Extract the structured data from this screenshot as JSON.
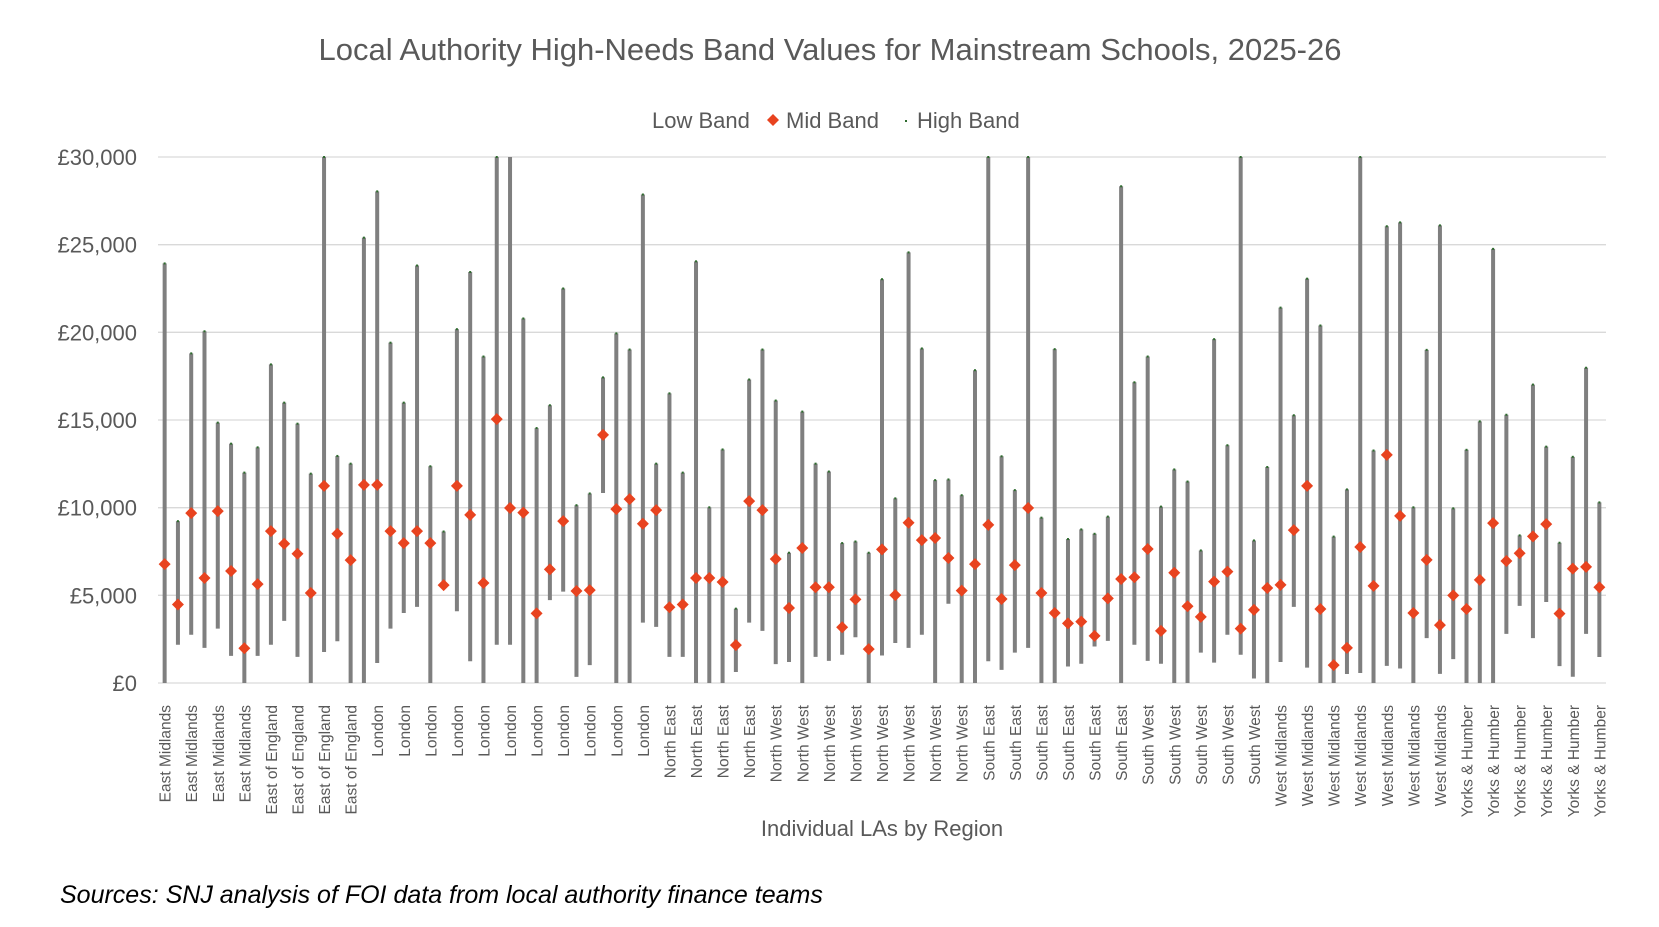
{
  "chart_data": {
    "type": "high-low-mid (stock-style range) chart",
    "title": "Local Authority High-Needs Band Values for Mainstream Schools, 2025-26",
    "xlabel": "Individual LAs by Region",
    "ylabel": "",
    "ylim": [
      0,
      30000
    ],
    "y_ticks": [
      0,
      5000,
      10000,
      15000,
      20000,
      25000,
      30000
    ],
    "y_tick_labels": [
      "£0",
      "£5,000",
      "£10,000",
      "£15,000",
      "£20,000",
      "£25,000",
      "£30,000"
    ],
    "grid": "horizontal",
    "legend_position": "top-center",
    "legend": [
      {
        "name": "Low Band",
        "marker": "none"
      },
      {
        "name": "Mid Band",
        "marker": "diamond"
      },
      {
        "name": "High Band",
        "marker": "dot"
      }
    ],
    "colors": {
      "range_line": "#7f7f7f",
      "mid_marker": "#e8431f",
      "high_marker": "#2e6b2e",
      "grid": "#d9d9d9",
      "text": "#595959"
    },
    "label_interval": 2,
    "x_tick_labels": [
      "East Midlands",
      "East Midlands",
      "East Midlands",
      "East Midlands",
      "East of England",
      "East of England",
      "East of England",
      "East of England",
      "London",
      "London",
      "London",
      "London",
      "London",
      "London",
      "London",
      "London",
      "London",
      "London",
      "London",
      "North East",
      "North East",
      "North East",
      "North East",
      "North West",
      "North West",
      "North West",
      "North West",
      "North West",
      "North West",
      "North West",
      "North West",
      "South East",
      "South East",
      "South East",
      "South East",
      "South East",
      "South East",
      "South West",
      "South West",
      "South West",
      "South West",
      "South West",
      "West Midlands",
      "West Midlands",
      "West Midlands",
      "West Midlands",
      "West Midlands",
      "West Midlands",
      "West Midlands",
      "Yorks & Humber",
      "Yorks & Humber",
      "Yorks & Humber",
      "Yorks & Humber",
      "Yorks & Humber",
      "Yorks & Humber"
    ],
    "note": "High values shown as 30000 with clipped=true extend beyond the axis maximum",
    "series": [
      {
        "name": "Low Band",
        "values": [
          0,
          2180,
          2750,
          2000,
          3100,
          1550,
          0,
          1550,
          2180,
          3540,
          1490,
          0,
          1770,
          2380,
          0,
          0,
          1140,
          3100,
          3990,
          4340,
          0,
          5580,
          4090,
          1240,
          0,
          2180,
          2180,
          0,
          0,
          4730,
          5210,
          350,
          1020,
          10840,
          0,
          0,
          3440,
          3200,
          1490,
          1490,
          0,
          0,
          0,
          630,
          3440,
          2970,
          1080,
          1200,
          0,
          1490,
          1260,
          1610,
          2610,
          0,
          1570,
          2280,
          2000,
          2750,
          0,
          4520,
          0,
          0,
          1240,
          750,
          1730,
          2000,
          0,
          0,
          940,
          1100,
          2080,
          2400,
          0,
          2180,
          1260,
          1100,
          0,
          0,
          1730,
          1160,
          2750,
          1610,
          260,
          0,
          1200,
          4340,
          880,
          0,
          0,
          510,
          570,
          0,
          980,
          830,
          0,
          2560,
          520,
          1360,
          0,
          0,
          0,
          2800,
          4400,
          2560,
          4620,
          960,
          360,
          2800,
          1480
        ]
      },
      {
        "name": "Mid Band",
        "values": [
          6780,
          4480,
          9690,
          5990,
          9800,
          6390,
          1980,
          5640,
          8660,
          7940,
          7370,
          5130,
          11240,
          8510,
          7010,
          11300,
          11300,
          8660,
          7980,
          8660,
          7980,
          5580,
          11240,
          9590,
          5700,
          15050,
          9980,
          9720,
          3970,
          6480,
          9230,
          5250,
          5300,
          14150,
          9920,
          10490,
          9080,
          9860,
          4320,
          4480,
          5990,
          5990,
          5760,
          2160,
          10370,
          9860,
          7070,
          4280,
          7700,
          5460,
          5460,
          3180,
          4770,
          1930,
          7620,
          5010,
          9140,
          8150,
          8270,
          7130,
          5270,
          6780,
          9020,
          4790,
          6720,
          9980,
          5130,
          3990,
          3400,
          3500,
          2690,
          4830,
          5930,
          6030,
          7640,
          2970,
          6290,
          4380,
          3770,
          5780,
          6350,
          3100,
          4170,
          5420,
          5600,
          8720,
          11240,
          4220,
          1020,
          2000,
          7760,
          5540,
          13010,
          9530,
          3990,
          7020,
          3300,
          5000,
          4220,
          5880,
          9120,
          6960,
          7400,
          8360,
          9060,
          3960,
          6520,
          6620,
          5460
        ]
      },
      {
        "name": "High Band",
        "values": [
          23930,
          9230,
          18800,
          20060,
          14850,
          13650,
          12000,
          13440,
          18170,
          15990,
          14790,
          11940,
          30000,
          12950,
          12510,
          25400,
          28040,
          19410,
          15990,
          23810,
          12360,
          8640,
          20180,
          23440,
          18620,
          30000,
          30060,
          20790,
          14540,
          15840,
          22500,
          10140,
          10810,
          17430,
          19940,
          19020,
          27860,
          12510,
          16520,
          12000,
          24050,
          10020,
          13320,
          4240,
          17310,
          19020,
          16110,
          7430,
          15480,
          12510,
          12060,
          7980,
          8070,
          7430,
          23030,
          10530,
          24560,
          19080,
          11570,
          11610,
          10710,
          17840,
          30000,
          12930,
          11000,
          30000,
          9430,
          19040,
          8210,
          8760,
          8510,
          9490,
          28330,
          17150,
          18620,
          10060,
          12180,
          11490,
          7560,
          19610,
          13560,
          30000,
          8130,
          12320,
          21410,
          15270,
          23060,
          20390,
          8350,
          11040,
          30000,
          13260,
          26050,
          26270,
          10020,
          19000,
          26100,
          9960,
          13300,
          14920,
          24760,
          15300,
          8420,
          17020,
          13480,
          8000,
          12900,
          17980,
          10300
        ]
      }
    ],
    "clipped_high_indices": [
      12,
      25,
      62,
      65,
      81,
      90
    ]
  },
  "footer": {
    "source": "Sources: SNJ analysis of FOI data from local authority finance teams"
  }
}
